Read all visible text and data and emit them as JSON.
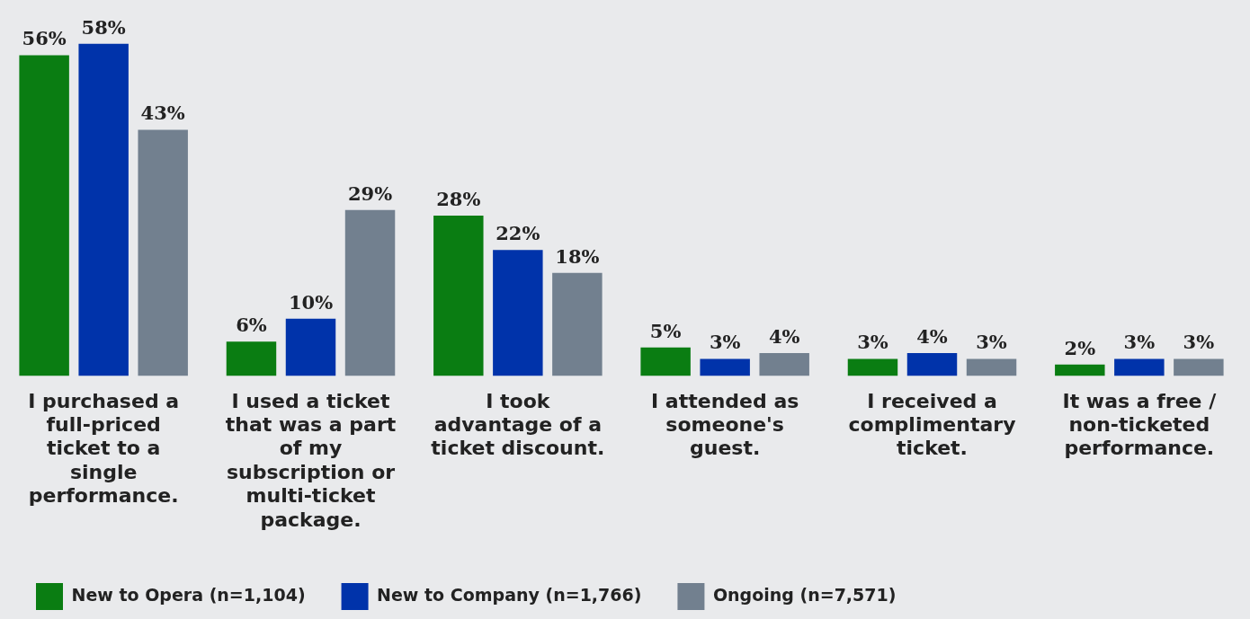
{
  "chart_data": {
    "type": "bar",
    "categories": [
      "I purchased a full-priced ticket to a single performance.",
      "I used a ticket that was a part of my subscription or multi-ticket package.",
      "I took advantage of a ticket discount.",
      "I attended as someone's guest.",
      "I received a complimentary ticket.",
      "It was a free / non-ticketed performance."
    ],
    "series": [
      {
        "name": "New to Opera (n=1,104)",
        "color": "#0a7d12",
        "values": [
          56,
          6,
          28,
          5,
          3,
          2
        ],
        "value_labels": [
          "56%",
          "6%",
          "28%",
          "5%",
          "3%",
          "2%"
        ]
      },
      {
        "name": "New to Company (n=1,766)",
        "color": "#0033aa",
        "values": [
          58,
          10,
          22,
          3,
          4,
          3
        ],
        "value_labels": [
          "58%",
          "10%",
          "22%",
          "3%",
          "4%",
          "3%"
        ]
      },
      {
        "name": "Ongoing (n=7,571)",
        "color": "#72808f",
        "values": [
          43,
          29,
          18,
          4,
          3,
          3
        ],
        "value_labels": [
          "43%",
          "29%",
          "18%",
          "4%",
          "3%",
          "3%"
        ]
      }
    ],
    "legend": "bottom left",
    "grid": false
  }
}
